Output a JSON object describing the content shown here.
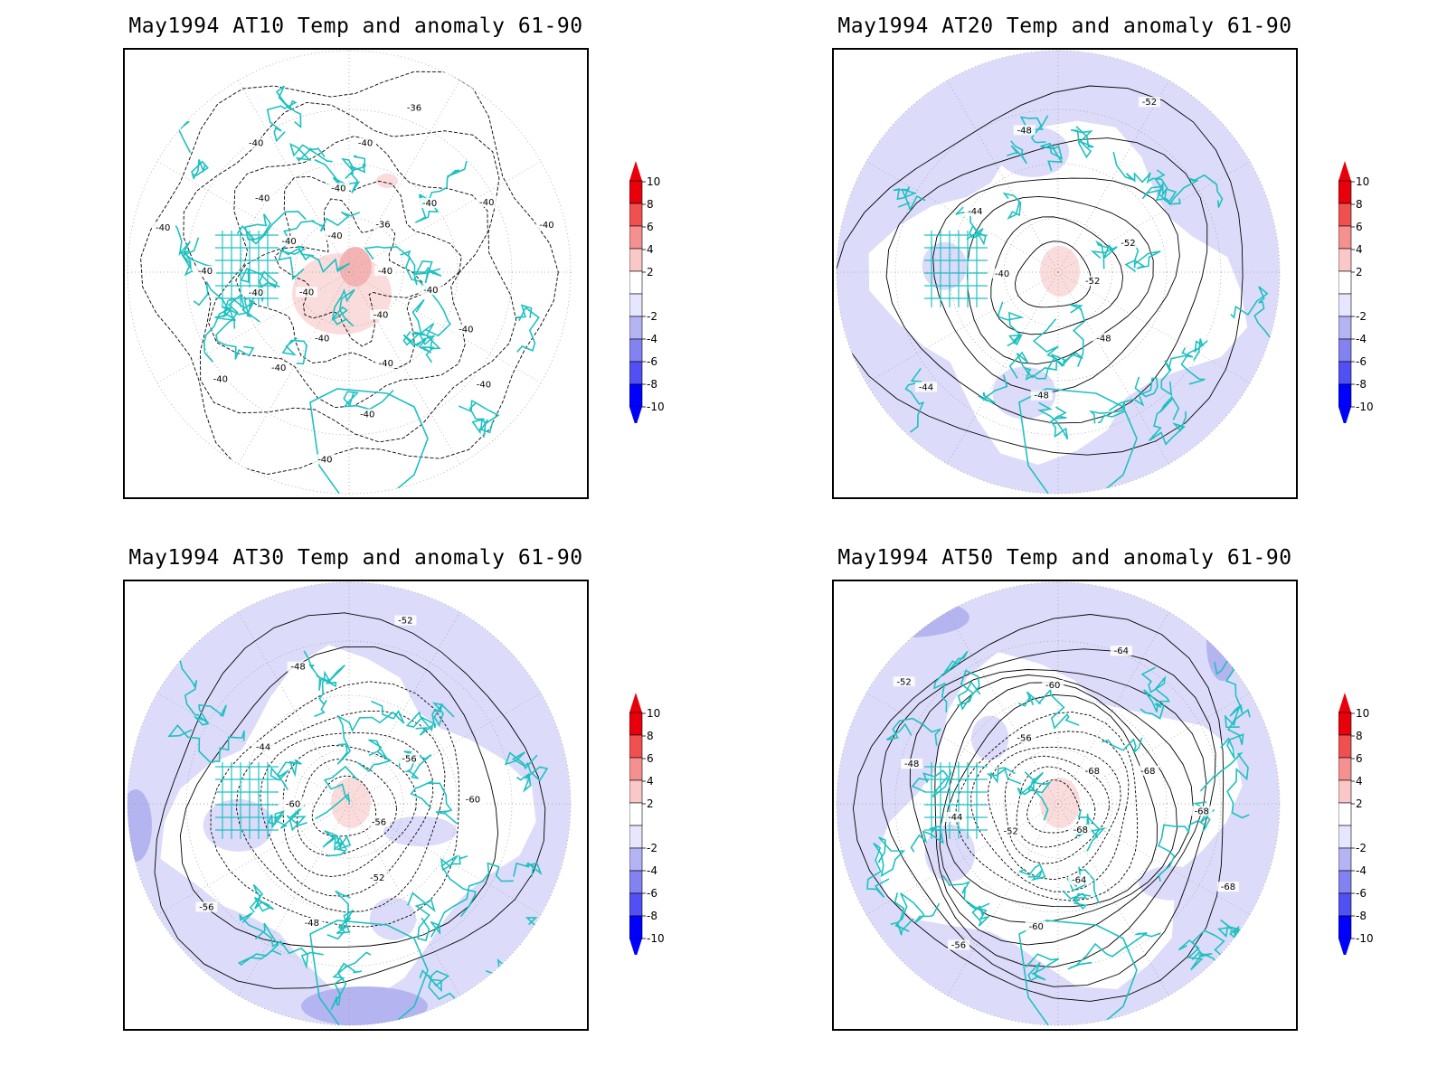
{
  "panels": [
    {
      "title": "May1994 AT10 Temp and anomaly 61-90",
      "contour_labels": [
        "-40",
        "-40",
        "-40",
        "-40",
        "-40",
        "-40",
        "-40",
        "-40",
        "-40",
        "-40",
        "-40",
        "-40",
        "-40",
        "-40",
        "-40",
        "-40",
        "-40",
        "-40",
        "-40",
        "-40",
        "-40",
        "-36",
        "-36",
        "-40",
        "-40",
        "-40"
      ],
      "anomaly_shading": "mostly neutral, small positive (2 to 6) patch over Arctic",
      "contour_type": "dashed"
    },
    {
      "title": "May1994 AT20 Temp and anomaly 61-90",
      "contour_labels": [
        "-52",
        "-48",
        "-48",
        "-44",
        "-40",
        "-44",
        "-48",
        "-52",
        "-52"
      ],
      "anomaly_shading": "outer band light negative (-2 to -4), small positive (2 to 4) near pole",
      "contour_type": "solid"
    },
    {
      "title": "May1994 AT30 Temp and anomaly 61-90",
      "contour_labels": [
        "-56",
        "-52",
        "-48",
        "-56",
        "-60",
        "-44",
        "-48",
        "-52",
        "-56",
        "-60"
      ],
      "anomaly_shading": "outer band light negative (-2 to -6), small positive (2 to 4) near pole",
      "contour_type": "solid"
    },
    {
      "title": "May1994 AT50 Temp and anomaly 61-90",
      "contour_labels": [
        "-68",
        "-64",
        "-60",
        "-56",
        "-52",
        "-44",
        "-48",
        "-52",
        "-56",
        "-60",
        "-64",
        "-68",
        "-68",
        "-68",
        "-68"
      ],
      "anomaly_shading": "outer band light negative (-2 to -6), small positive (2 to 4) near pole",
      "contour_type": "solid"
    }
  ],
  "colorbar": {
    "labels": [
      "10",
      "8",
      "6",
      "4",
      "2",
      "-2",
      "-4",
      "-6",
      "-8",
      "-10"
    ],
    "colors": [
      "#e8000b",
      "#f05050",
      "#f59090",
      "#fac8c8",
      "#ffffff",
      "#e6e6ff",
      "#b4b4f5",
      "#8282f0",
      "#5050f5",
      "#0000ff"
    ],
    "top_color": "#e8000b",
    "bottom_color": "#0000ff"
  },
  "colors": {
    "coastline": "#20c0c0",
    "contour": "#000000",
    "grid": "#999999",
    "anomaly_neg_light": "#dcdcfa",
    "anomaly_neg_mid": "#b4b4f0",
    "anomaly_pos_light": "#fadcdc",
    "anomaly_pos_mid": "#f5b4b4"
  }
}
